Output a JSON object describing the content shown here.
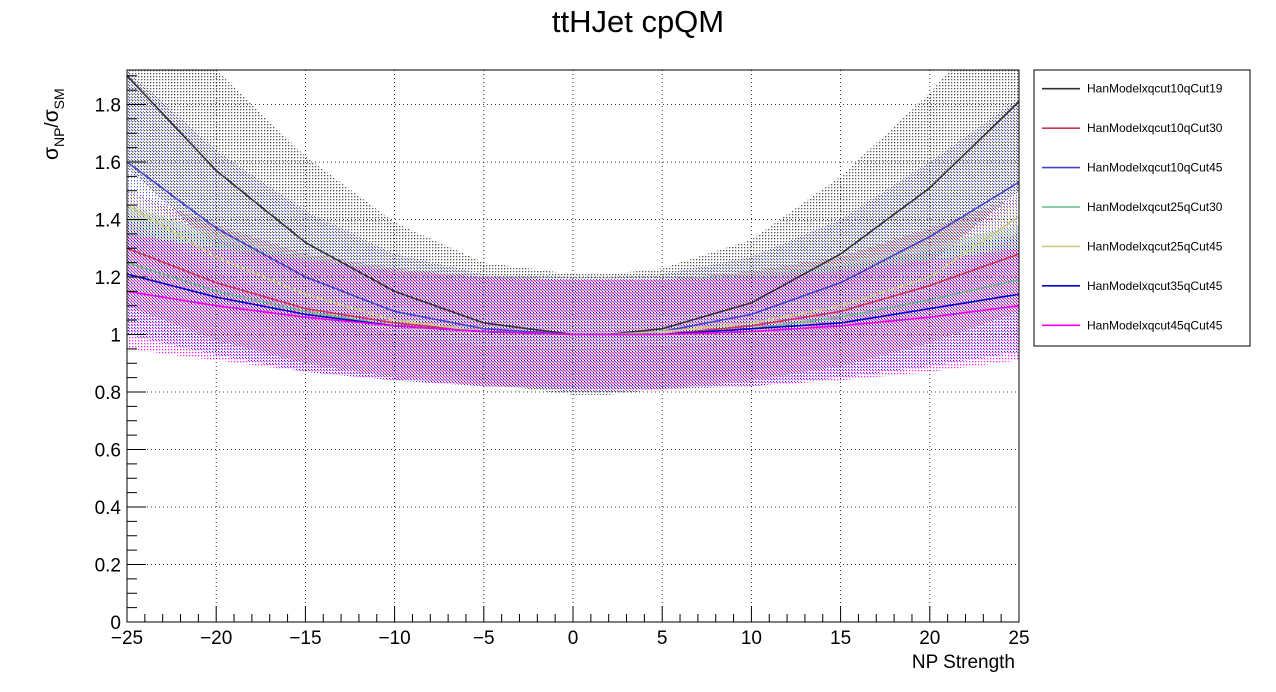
{
  "chart_data": {
    "type": "line",
    "title": "ttHJet cpQM",
    "xlabel": "NP Strength",
    "ylabel": {
      "sigma": "σ",
      "np": "NP",
      "slash": "/",
      "sm": "SM"
    },
    "xlim": [
      -25,
      25
    ],
    "ylim": [
      0,
      1.92
    ],
    "xticks": [
      -25,
      -20,
      -15,
      -10,
      -5,
      0,
      5,
      10,
      15,
      20,
      25
    ],
    "yticks": [
      0,
      0.2,
      0.4,
      0.6,
      0.8,
      1,
      1.2,
      1.4,
      1.6,
      1.8
    ],
    "grid": true,
    "legend_position": "right",
    "x": [
      -25,
      -20,
      -15,
      -10,
      -5,
      0,
      2,
      5,
      10,
      15,
      20,
      25
    ],
    "series": [
      {
        "name": "HanModelxqcut10qCut19",
        "color": "#333333",
        "values": [
          1.9,
          1.57,
          1.32,
          1.15,
          1.04,
          1.0,
          1.0,
          1.02,
          1.11,
          1.28,
          1.51,
          1.81
        ],
        "band_lower": [
          1.58,
          1.3,
          1.08,
          0.93,
          0.83,
          0.79,
          0.79,
          0.81,
          0.89,
          1.04,
          1.25,
          1.5
        ],
        "band_upper": [
          2.3,
          1.92,
          1.62,
          1.39,
          1.25,
          1.21,
          1.21,
          1.23,
          1.33,
          1.55,
          1.84,
          2.2
        ]
      },
      {
        "name": "HanModelxqcut10qCut30",
        "color": "#cc3355",
        "values": [
          1.3,
          1.18,
          1.09,
          1.04,
          1.01,
          1.0,
          1.0,
          1.0,
          1.03,
          1.08,
          1.17,
          1.28
        ],
        "band_lower": [
          1.1,
          0.98,
          0.9,
          0.85,
          0.82,
          0.81,
          0.81,
          0.81,
          0.84,
          0.89,
          0.97,
          1.08
        ],
        "band_upper": [
          1.5,
          1.38,
          1.28,
          1.23,
          1.2,
          1.19,
          1.19,
          1.19,
          1.22,
          1.27,
          1.37,
          1.48
        ]
      },
      {
        "name": "HanModelxqcut10qCut45",
        "color": "#4444cc",
        "values": [
          1.6,
          1.37,
          1.2,
          1.08,
          1.02,
          1.0,
          1.0,
          1.01,
          1.07,
          1.18,
          1.34,
          1.53
        ],
        "band_lower": [
          1.3,
          1.1,
          0.98,
          0.89,
          0.83,
          0.8,
          0.8,
          0.81,
          0.87,
          0.96,
          1.09,
          1.25
        ],
        "band_upper": [
          1.92,
          1.64,
          1.43,
          1.28,
          1.21,
          1.2,
          1.2,
          1.21,
          1.27,
          1.4,
          1.6,
          1.82
        ]
      },
      {
        "name": "HanModelxqcut25qCut30",
        "color": "#66bb88",
        "values": [
          1.25,
          1.15,
          1.08,
          1.03,
          1.01,
          1.0,
          1.0,
          1.0,
          1.02,
          1.06,
          1.12,
          1.19
        ],
        "band_lower": [
          1.05,
          0.96,
          0.89,
          0.84,
          0.82,
          0.81,
          0.81,
          0.81,
          0.83,
          0.87,
          0.93,
          1.0
        ],
        "band_upper": [
          1.45,
          1.35,
          1.27,
          1.22,
          1.2,
          1.19,
          1.19,
          1.19,
          1.21,
          1.25,
          1.31,
          1.38
        ]
      },
      {
        "name": "HanModelxqcut25qCut45",
        "color": "#cccc88",
        "values": [
          1.45,
          1.27,
          1.14,
          1.05,
          1.01,
          1.0,
          1.0,
          1.01,
          1.04,
          1.1,
          1.2,
          1.41
        ],
        "band_lower": [
          1.4,
          1.22,
          1.09,
          1.0,
          0.96,
          0.95,
          0.95,
          0.96,
          0.99,
          1.05,
          1.15,
          1.36
        ],
        "band_upper": [
          1.5,
          1.32,
          1.19,
          1.1,
          1.06,
          1.05,
          1.05,
          1.06,
          1.09,
          1.15,
          1.25,
          1.46
        ]
      },
      {
        "name": "HanModelxqcut35qCut45",
        "color": "#0000cc",
        "values": [
          1.21,
          1.13,
          1.07,
          1.03,
          1.01,
          1.0,
          1.0,
          1.0,
          1.02,
          1.04,
          1.09,
          1.14
        ],
        "band_lower": [
          1.0,
          0.93,
          0.87,
          0.84,
          0.82,
          0.81,
          0.81,
          0.81,
          0.82,
          0.85,
          0.89,
          0.94
        ],
        "band_upper": [
          1.42,
          1.33,
          1.27,
          1.22,
          1.2,
          1.19,
          1.19,
          1.19,
          1.21,
          1.24,
          1.29,
          1.35
        ]
      },
      {
        "name": "HanModelxqcut45qCut45",
        "color": "#ee00ee",
        "values": [
          1.15,
          1.1,
          1.06,
          1.03,
          1.01,
          1.0,
          1.0,
          1.0,
          1.01,
          1.03,
          1.06,
          1.1
        ],
        "band_lower": [
          0.95,
          0.91,
          0.87,
          0.84,
          0.82,
          0.81,
          0.81,
          0.81,
          0.82,
          0.84,
          0.87,
          0.91
        ],
        "band_upper": [
          1.35,
          1.3,
          1.26,
          1.22,
          1.2,
          1.19,
          1.19,
          1.19,
          1.2,
          1.22,
          1.26,
          1.3
        ]
      }
    ]
  }
}
